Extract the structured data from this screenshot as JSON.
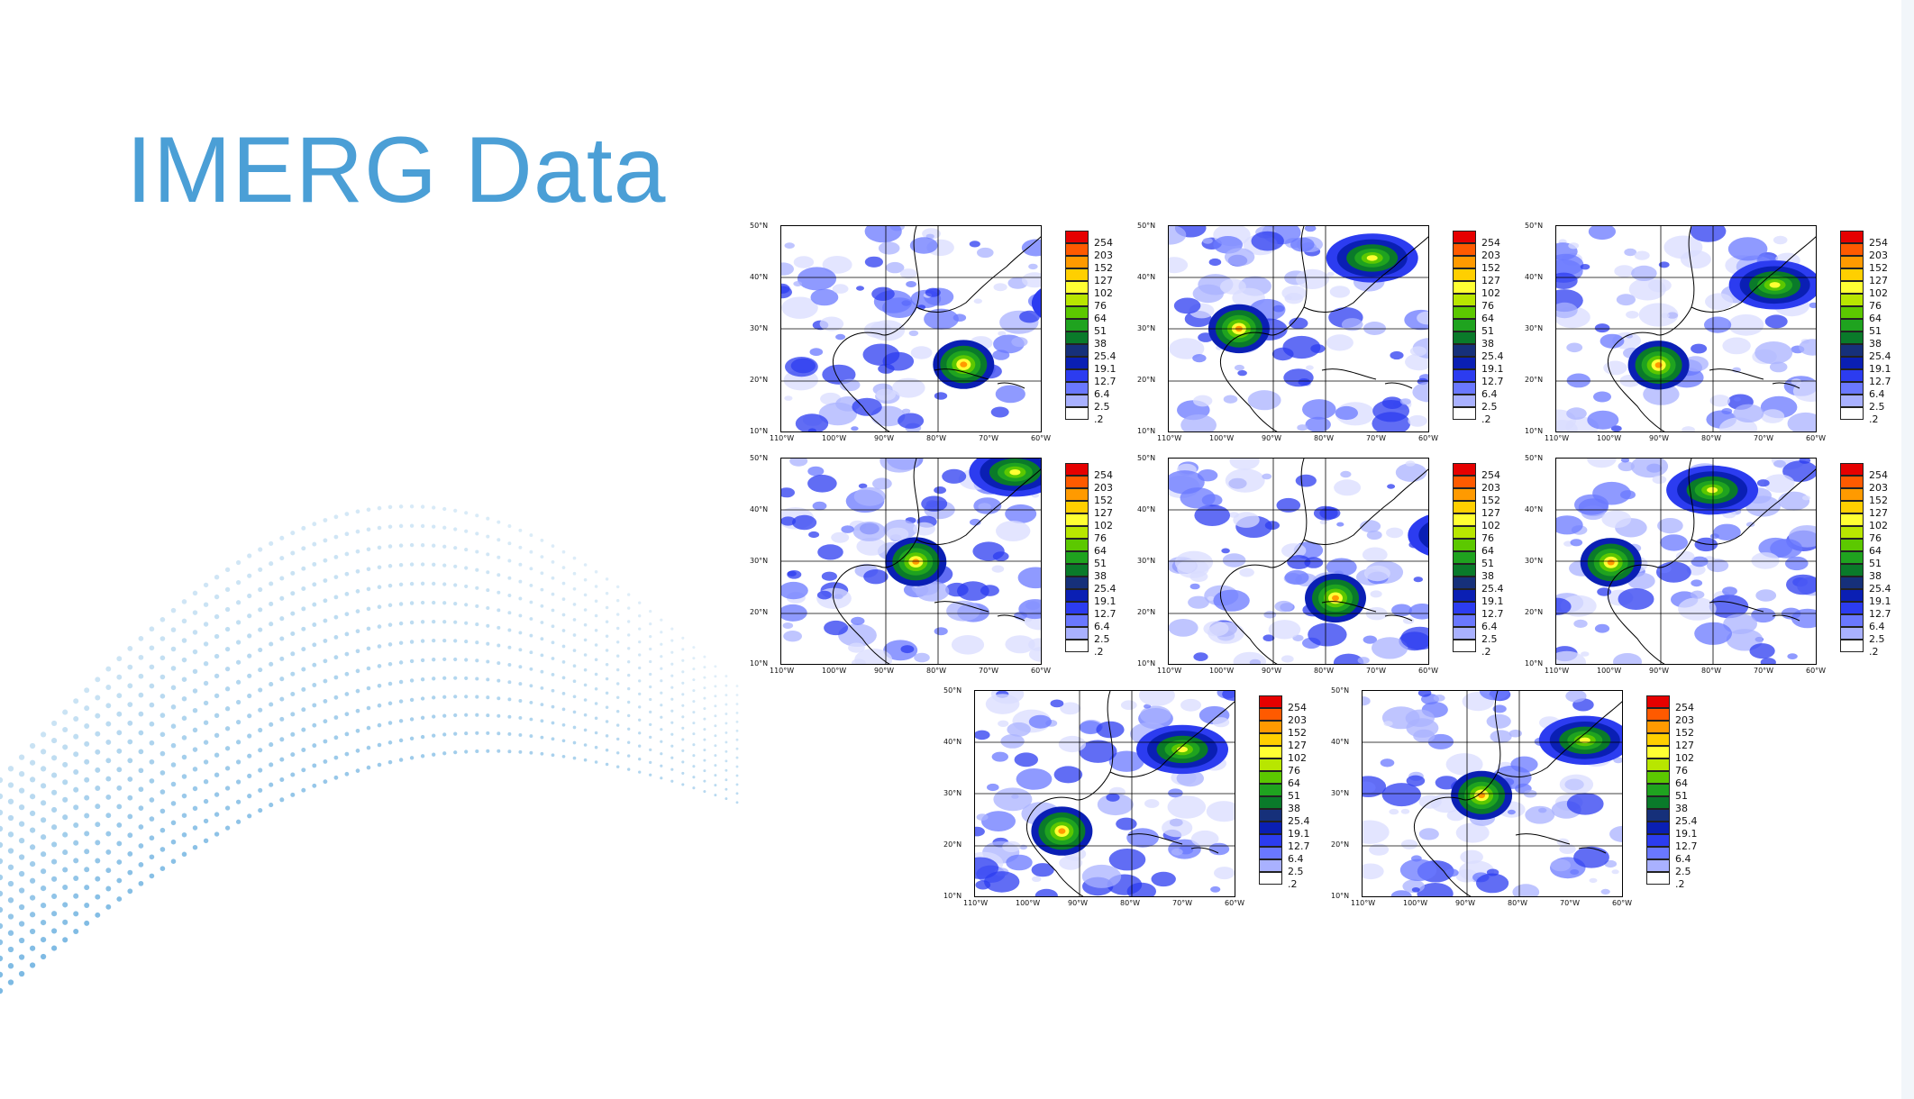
{
  "slide": {
    "title": "IMERG Data",
    "accent_color": "#4b9fd6"
  },
  "figure": {
    "lat_ticks": [
      "50°N",
      "40°N",
      "30°N",
      "20°N",
      "10°N"
    ],
    "lon_ticks": [
      "110°W",
      "100°W",
      "90°W",
      "80°W",
      "70°W",
      "60°W"
    ],
    "colorbar_levels": [
      "254",
      "203",
      "152",
      "127",
      "102",
      "76",
      "64",
      "51",
      "38",
      "25.4",
      "19.1",
      "12.7",
      "6.4",
      "2.5",
      ".2"
    ],
    "colorbar_colors": [
      "#e60000",
      "#ff5a00",
      "#ff9a00",
      "#ffcf00",
      "#ffff33",
      "#b8e600",
      "#5cc800",
      "#1fa31f",
      "#0a7a2a",
      "#16307a",
      "#0a1fb4",
      "#2c3cf0",
      "#6a78ff",
      "#a9b1ff",
      "#ffffff"
    ],
    "panel_count": 8
  }
}
